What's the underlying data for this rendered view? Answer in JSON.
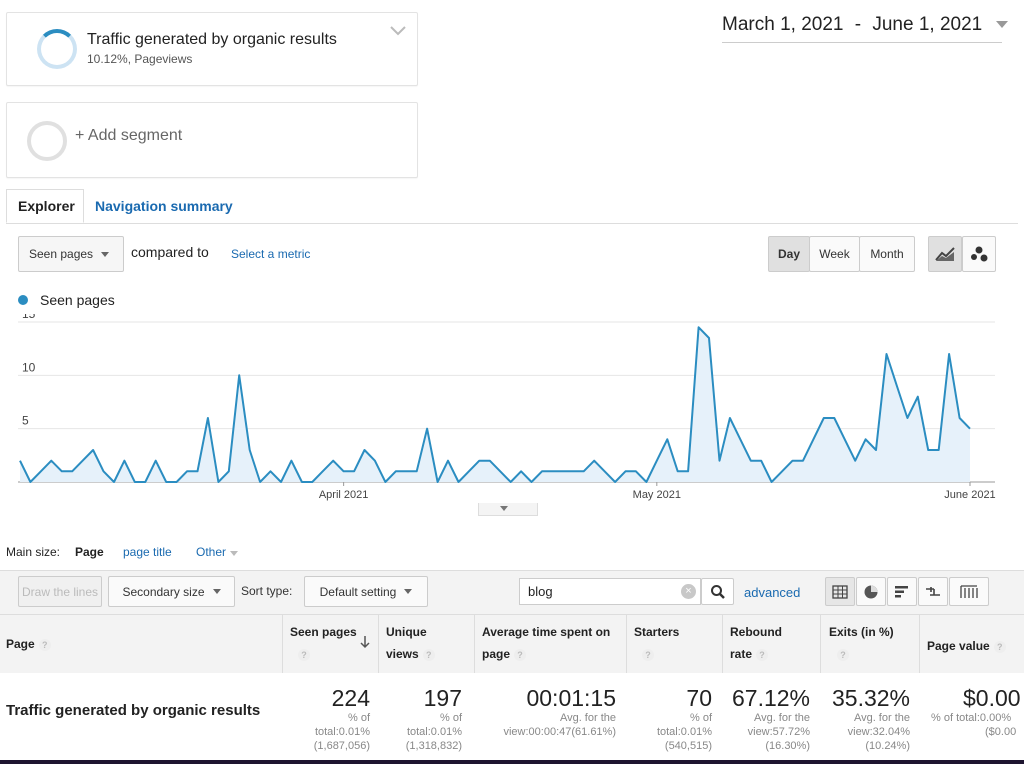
{
  "segment": {
    "title": "Traffic generated by organic results",
    "subtitle": "10.12%, Pageviews"
  },
  "add_segment": {
    "label": "+ Add segment"
  },
  "date_range": {
    "start": "March 1, 2021",
    "separator": "-",
    "end": "June 1, 2021"
  },
  "tabs": [
    {
      "label": "Explorer"
    },
    {
      "label": "Navigation summary"
    }
  ],
  "metric_bar": {
    "metric_select": "Seen pages",
    "compared_to": "compared to",
    "select_metric": "Select a metric",
    "granularity": [
      "Day",
      "Week",
      "Month"
    ],
    "active_granularity": "Day"
  },
  "chart_legend": {
    "label": "Seen pages",
    "color": "#2b8dc1"
  },
  "chart_data": {
    "type": "area",
    "series": [
      {
        "name": "Seen pages",
        "values": [
          2,
          0,
          1,
          2,
          1,
          1,
          2,
          3,
          1,
          0,
          2,
          0,
          0,
          2,
          0,
          0,
          1,
          1,
          6,
          0,
          1,
          10,
          3,
          0,
          1,
          0,
          2,
          0,
          0,
          1,
          2,
          1,
          1,
          3,
          2,
          0,
          1,
          1,
          1,
          5,
          0,
          2,
          0,
          1,
          2,
          2,
          1,
          0,
          1,
          0,
          1,
          1,
          1,
          1,
          1,
          2,
          1,
          0,
          1,
          1,
          0,
          2,
          4,
          1,
          1,
          14.5,
          13.5,
          2,
          6,
          4,
          2,
          2,
          0,
          1,
          2,
          2,
          4,
          6,
          6,
          4,
          2,
          4,
          3,
          12,
          9,
          6,
          8,
          3,
          3,
          12,
          6,
          5
        ]
      }
    ],
    "x_tick_labels": [
      "April 2021",
      "May 2021",
      "June 2021"
    ],
    "y_tick_labels": [
      "5",
      "10",
      "15"
    ],
    "ylim": [
      0,
      15
    ],
    "x_range": [
      "March 1, 2021",
      "June 1, 2021"
    ],
    "grid": true
  },
  "primary_dim": {
    "label": "Main size:",
    "active": "Page",
    "options": [
      "page title",
      "Other"
    ]
  },
  "toolbar": {
    "draw_lines": "Draw the lines",
    "secondary": "Secondary size",
    "sort_label": "Sort type:",
    "sort_value": "Default setting",
    "search_value": "blog",
    "advanced": "advanced"
  },
  "table": {
    "headers": {
      "page": "Page",
      "seen": "Seen pages",
      "unique": "Unique views",
      "avg_time": "Average time spent on page",
      "starters": "Starters",
      "bounce": "Bounce rate",
      "exits": "Exits (in %)",
      "value": "Page value"
    },
    "bounce_line1": "Rebound",
    "bounce_line2": "rate",
    "unique_line1": "Unique",
    "unique_line2": "views",
    "avg_line1": "Average time spent on",
    "avg_line2": "page",
    "row": {
      "page": "Traffic generated by organic results",
      "seen": {
        "value": "224",
        "l1": "% of",
        "l2": "total:0.01%",
        "l3": "(1,687,056)"
      },
      "unique": {
        "value": "197",
        "l1": "% of",
        "l2": "total:0.01%",
        "l3": "(1,318,832)"
      },
      "avg_time": {
        "value": "00:01:15",
        "l1": "Avg. for the",
        "l2": "view:00:00:47(61.61%)"
      },
      "starters": {
        "value": "70",
        "l1": "% of",
        "l2": "total:0.01%",
        "l3": "(540,515)"
      },
      "bounce": {
        "value": "67.12%",
        "l1": "Avg. for the",
        "l2": "view:57.72%",
        "l3": "(16.30%)"
      },
      "exits": {
        "value": "35.32%",
        "l1": "Avg. for the",
        "l2": "view:32.04%",
        "l3": "(10.24%)"
      },
      "value": {
        "value": "$0.00",
        "l1": "% of total:0.00%",
        "l2": "($0.00"
      }
    }
  }
}
